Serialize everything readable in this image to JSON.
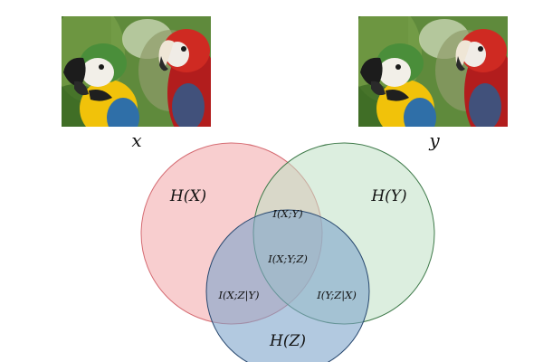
{
  "images": {
    "x": {
      "label": "x",
      "depicts": "parrots-photo"
    },
    "y": {
      "label": "y",
      "depicts": "parrots-photo"
    }
  },
  "venn": {
    "sets": [
      {
        "id": "X",
        "label": "H(X)",
        "fill": "#f3a6a8",
        "stroke": "#d56b72"
      },
      {
        "id": "Y",
        "label": "H(Y)",
        "fill": "#bfe0c4",
        "stroke": "#3f7a4a"
      },
      {
        "id": "Z",
        "label": "H(Z)",
        "fill": "#7fa5cc",
        "stroke": "#27476e"
      }
    ],
    "regions": {
      "xy": "I(X;Y)",
      "xyz": "I(X;Y;Z)",
      "xz_given_y": "I(X;Z|Y)",
      "yz_given_x": "I(Y;Z|X)"
    }
  }
}
